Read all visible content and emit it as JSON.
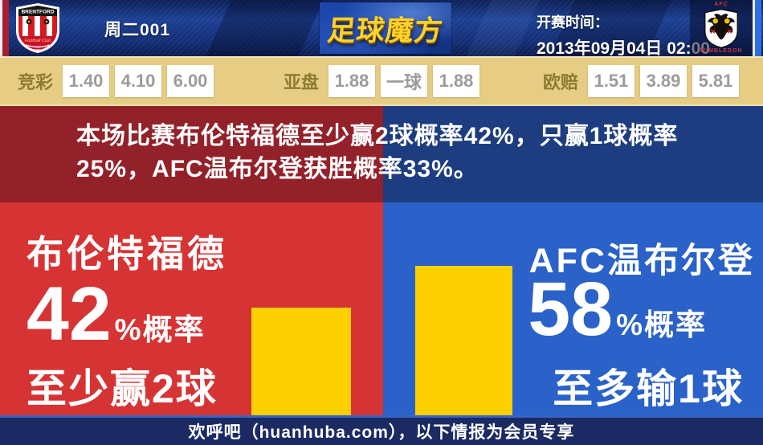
{
  "header": {
    "match_id": "周二001",
    "site_logo": "足球魔方",
    "kickoff_label": "开赛时间：",
    "kickoff_time": "2013年09月04日 02:00",
    "home_crest_text": "BRENTFORD",
    "home_crest_sub": "Football Club",
    "away_crest_top": "AFC",
    "away_crest_bottom": "WIMBLEDON"
  },
  "odds": {
    "groups": [
      {
        "label": "竞彩",
        "values": [
          "1.40",
          "4.10",
          "6.00"
        ]
      },
      {
        "label": "亚盘",
        "values": [
          "1.88",
          "一球",
          "1.88"
        ]
      },
      {
        "label": "欧赔",
        "values": [
          "1.51",
          "3.89",
          "5.81"
        ]
      }
    ]
  },
  "summary": {
    "line1": "本场比赛布伦特福德至少赢2球概率42%，只赢1球概率",
    "line2": "25%，AFC温布尔登获胜概率33%。"
  },
  "home_panel": {
    "team": "布伦特福德",
    "percent": "42",
    "percent_suffix": "%概率",
    "outcome": "至少赢2球"
  },
  "away_panel": {
    "team": "AFC温布尔登",
    "percent": "58",
    "percent_suffix": "%概率",
    "outcome": "至多输1球"
  },
  "footer": {
    "text": "欢呼吧（huanhuba.com），以下情报为会员专享"
  },
  "colors": {
    "home_red": "#d63434",
    "away_blue": "#2a62c9",
    "banner_red": "#93212a",
    "banner_blue": "#1d3d80",
    "bar_yellow": "#fdd000",
    "odds_bg": "#e7cd84",
    "odds_label": "#8d7b35",
    "odds_value": "#9b9b9b",
    "footer_navy": "#1b2a63",
    "gold_logo": "#ffd327"
  },
  "chart_data": {
    "type": "bar",
    "categories": [
      "布伦特福德 至少赢2球",
      "AFC温布尔登 至多输1球"
    ],
    "values": [
      42,
      58
    ],
    "unit": "%",
    "bar_color": "#fdd000",
    "ylim": [
      0,
      100
    ]
  }
}
